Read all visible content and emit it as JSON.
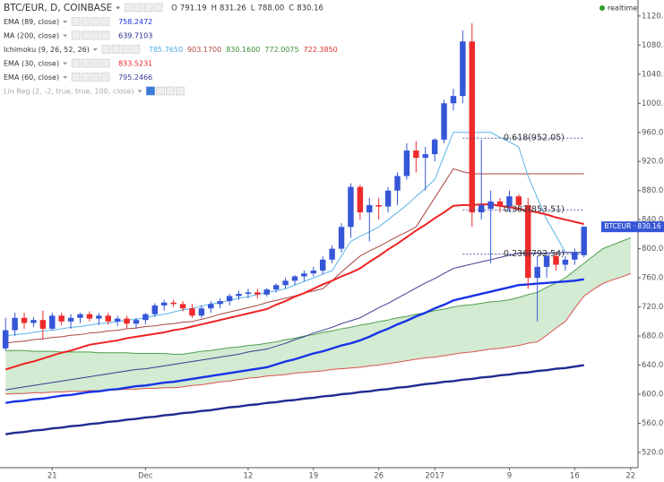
{
  "chart_data": {
    "type": "candlestick",
    "title": "BTC/EUR, D, COINBASE",
    "ohlc_readout": [
      {
        "label": "O",
        "value": "791.19"
      },
      {
        "label": "H",
        "value": "831.26"
      },
      {
        "label": "L",
        "value": "788.00"
      },
      {
        "label": "C",
        "value": "830.16"
      }
    ],
    "status": "realtime",
    "up_color": "#3656d8",
    "down_color": "#ee2a2a",
    "categories": [
      null,
      null,
      null,
      null,
      null,
      "21",
      null,
      null,
      null,
      null,
      null,
      null,
      null,
      null,
      null,
      "Dec",
      null,
      null,
      null,
      null,
      null,
      null,
      null,
      null,
      null,
      null,
      "12",
      null,
      null,
      null,
      null,
      null,
      null,
      "19",
      null,
      null,
      null,
      null,
      null,
      null,
      "26",
      null,
      null,
      null,
      null,
      null,
      "2017",
      null,
      null,
      null,
      null,
      null,
      null,
      null,
      "9",
      null,
      null,
      null,
      null,
      null,
      null,
      "16",
      null,
      null,
      null,
      null,
      null,
      "22"
    ],
    "open": [
      663,
      688,
      705,
      698,
      702,
      690,
      708,
      700,
      705,
      710,
      704,
      708,
      700,
      704,
      697,
      702,
      710,
      722,
      726,
      724,
      718,
      708,
      718,
      724,
      728,
      735,
      738,
      740,
      737,
      744,
      750,
      756,
      762,
      766,
      770,
      785,
      800,
      830,
      885,
      850,
      860,
      858,
      880,
      900,
      935,
      925,
      930,
      950,
      1000,
      1010,
      1085,
      850,
      855,
      865,
      858,
      872,
      860,
      760,
      775,
      790,
      778,
      785,
      791.19,
      null,
      null,
      null,
      null,
      null
    ],
    "high": [
      705,
      712,
      712,
      706,
      715,
      712,
      712,
      710,
      712,
      714,
      712,
      712,
      708,
      708,
      705,
      712,
      725,
      730,
      730,
      728,
      724,
      722,
      728,
      732,
      738,
      742,
      745,
      745,
      746,
      752,
      760,
      764,
      770,
      775,
      790,
      805,
      835,
      890,
      888,
      870,
      870,
      885,
      905,
      945,
      948,
      940,
      952,
      1005,
      1020,
      1100,
      1110,
      950,
      880,
      870,
      880,
      875,
      870,
      790,
      795,
      795,
      790,
      800,
      831.26,
      null,
      null,
      null,
      null,
      null
    ],
    "low": [
      660,
      680,
      690,
      692,
      675,
      688,
      695,
      690,
      698,
      700,
      695,
      696,
      694,
      690,
      690,
      696,
      706,
      715,
      720,
      714,
      705,
      705,
      712,
      718,
      722,
      730,
      732,
      732,
      734,
      740,
      745,
      750,
      755,
      762,
      765,
      780,
      795,
      815,
      840,
      810,
      840,
      850,
      860,
      895,
      905,
      880,
      920,
      945,
      990,
      1000,
      830,
      840,
      780,
      850,
      850,
      855,
      745,
      700,
      760,
      770,
      770,
      778,
      788,
      null,
      null,
      null,
      null,
      null
    ],
    "close": [
      688,
      705,
      698,
      702,
      690,
      708,
      700,
      705,
      710,
      704,
      708,
      700,
      704,
      697,
      702,
      710,
      722,
      726,
      724,
      718,
      708,
      718,
      724,
      728,
      735,
      738,
      740,
      737,
      744,
      750,
      756,
      762,
      766,
      770,
      785,
      800,
      830,
      885,
      850,
      860,
      858,
      880,
      900,
      935,
      925,
      930,
      950,
      1000,
      1010,
      1085,
      850,
      860,
      865,
      858,
      872,
      860,
      760,
      775,
      790,
      778,
      785,
      795,
      830.16,
      null,
      null,
      null,
      null,
      null
    ],
    "series": [
      {
        "name": "EMA (89, close)",
        "readout": "758.2472",
        "color": "#1733e6",
        "values": [
          588,
          590,
          591,
          593,
          594,
          596,
          598,
          599,
          601,
          603,
          604,
          606,
          607,
          609,
          611,
          612,
          614,
          616,
          617,
          619,
          621,
          623,
          625,
          627,
          629,
          631,
          633,
          635,
          637,
          641,
          645,
          648,
          652,
          656,
          659,
          663,
          667,
          670,
          674,
          679,
          685,
          690,
          696,
          701,
          707,
          712,
          718,
          723,
          729,
          732,
          735,
          738,
          741,
          744,
          747,
          750,
          751,
          752,
          753,
          754,
          755,
          756,
          758,
          null,
          null,
          null,
          null,
          null
        ]
      },
      {
        "name": "MA (200, close)",
        "readout": "639.7103",
        "color": "#1f2a8e",
        "values": [
          545,
          547,
          548,
          550,
          551,
          553,
          554,
          556,
          557,
          559,
          560,
          562,
          563,
          565,
          566,
          568,
          569,
          571,
          572,
          574,
          575,
          577,
          578,
          580,
          582,
          583,
          585,
          586,
          588,
          589,
          591,
          592,
          594,
          595,
          597,
          598,
          600,
          601,
          603,
          604,
          606,
          607,
          609,
          610,
          612,
          614,
          615,
          617,
          618,
          620,
          621,
          623,
          624,
          626,
          627,
          629,
          630,
          632,
          633,
          635,
          636,
          638,
          640,
          null,
          null,
          null,
          null,
          null
        ]
      },
      {
        "name": "Ichimoku (9, 26, 52, 26)",
        "readouts": [
          "785.7650",
          "903.1700",
          "830.1600",
          "772.0075",
          "722.3850"
        ],
        "readout_colors": [
          "#4aa8e0",
          "#b04a44",
          "#3b8f3b",
          "#3b8f3b",
          "#e0322e"
        ],
        "cloud_color": "#bfe3bf",
        "lines": [
          {
            "color": "#5ab4e8",
            "values": [
              680,
              682,
              683,
              685,
              687,
              688,
              690,
              692,
              693,
              695,
              697,
              698,
              700,
              702,
              703,
              705,
              708,
              710,
              713,
              716,
              718,
              721,
              724,
              726,
              729,
              732,
              734,
              737,
              740,
              742,
              745,
              750,
              755,
              760,
              765,
              770,
              790,
              810,
              817,
              823,
              830,
              840,
              850,
              860,
              872,
              883,
              895,
              928,
              960,
              960,
              960,
              960,
              960,
              953,
              947,
              940,
              900,
              870,
              840,
              818,
              795,
              795,
              795,
              null,
              null,
              null,
              null,
              null
            ]
          },
          {
            "color": "#a8453f",
            "values": [
              670,
              672,
              673,
              675,
              676,
              678,
              679,
              681,
              682,
              684,
              685,
              687,
              688,
              690,
              691,
              693,
              694,
              696,
              697,
              699,
              700,
              703,
              706,
              710,
              713,
              716,
              719,
              722,
              726,
              729,
              732,
              735,
              739,
              742,
              745,
              756,
              768,
              779,
              790,
              797,
              803,
              810,
              817,
              823,
              830,
              850,
              870,
              890,
              910,
              906,
              903,
              903,
              903,
              903,
              903,
              903,
              903,
              903,
              903,
              903,
              903,
              903,
              903,
              null,
              null,
              null,
              null,
              null
            ]
          },
          {
            "color": "#4f9e4f",
            "values": [
              660,
              660,
              660,
              659,
              659,
              659,
              658,
              658,
              658,
              658,
              657,
              657,
              657,
              657,
              656,
              656,
              656,
              656,
              655,
              655,
              657,
              659,
              660,
              662,
              664,
              665,
              667,
              668,
              670,
              672,
              675,
              677,
              680,
              682,
              685,
              687,
              690,
              692,
              695,
              697,
              700,
              702,
              705,
              707,
              710,
              712,
              715,
              717,
              720,
              722,
              723,
              725,
              727,
              728,
              730,
              733,
              737,
              740,
              747,
              753,
              760,
              770,
              780,
              790,
              800,
              805,
              810,
              815
            ]
          },
          {
            "color": "#d9534f",
            "values": [
              600,
              601,
              601,
              602,
              602,
              603,
              603,
              604,
              604,
              605,
              605,
              606,
              606,
              607,
              607,
              608,
              608,
              609,
              609,
              610,
              612,
              613,
              615,
              617,
              618,
              620,
              622,
              623,
              625,
              626,
              627,
              629,
              630,
              631,
              632,
              634,
              635,
              636,
              637,
              639,
              640,
              642,
              644,
              646,
              648,
              650,
              651,
              653,
              655,
              657,
              658,
              660,
              662,
              663,
              665,
              667,
              670,
              672,
              681,
              691,
              700,
              718,
              735,
              744,
              752,
              757,
              761,
              766
            ]
          }
        ]
      },
      {
        "name": "EMA (30, close)",
        "readout": "833.5231",
        "color": "#ee2222",
        "values": [
          634,
          638,
          642,
          645,
          649,
          653,
          657,
          660,
          664,
          668,
          670,
          672,
          674,
          677,
          679,
          681,
          683,
          685,
          688,
          690,
          693,
          696,
          699,
          702,
          705,
          708,
          711,
          714,
          717,
          723,
          728,
          734,
          739,
          745,
          751,
          756,
          762,
          767,
          773,
          782,
          790,
          799,
          807,
          816,
          825,
          833,
          842,
          850,
          859,
          860,
          860,
          861,
          861,
          859,
          857,
          855,
          852,
          850,
          847,
          843,
          840,
          837,
          834,
          null,
          null,
          null,
          null,
          null
        ]
      },
      {
        "name": "EMA (60, close)",
        "readout": "795.2466",
        "color": "#3a3d92",
        "values": [
          606,
          608,
          610,
          612,
          614,
          616,
          618,
          620,
          622,
          624,
          626,
          628,
          630,
          632,
          634,
          635,
          637,
          639,
          641,
          643,
          645,
          647,
          649,
          651,
          653,
          655,
          658,
          660,
          662,
          666,
          670,
          675,
          679,
          684,
          688,
          692,
          697,
          701,
          705,
          712,
          719,
          725,
          732,
          739,
          746,
          753,
          759,
          766,
          773,
          776,
          779,
          782,
          785,
          788,
          791,
          794,
          794,
          794,
          794,
          795,
          795,
          795,
          795,
          null,
          null,
          null,
          null,
          null
        ]
      },
      {
        "name": "Lin Reg (2, -2, true, true, 100, close)",
        "hidden": true
      }
    ],
    "fibonacci": [
      {
        "label": "0.618(952.05)",
        "value": 952.05
      },
      {
        "label": "0.382(853.51)",
        "value": 853.51
      },
      {
        "label": "0.236(792.54)",
        "value": 792.54
      }
    ],
    "price_badge": "BTCEUR · 830.16",
    "ylim": [
      499,
      1142
    ],
    "yticks": [
      {
        "value": 520,
        "label": "520.00"
      },
      {
        "value": 560,
        "label": "560.00"
      },
      {
        "value": 600,
        "label": "600.00"
      },
      {
        "value": 640,
        "label": "640.00"
      },
      {
        "value": 680,
        "label": "680.00"
      },
      {
        "value": 720,
        "label": "720.00"
      },
      {
        "value": 760,
        "label": "760.00"
      },
      {
        "value": 800,
        "label": "800.00"
      },
      {
        "value": 840,
        "label": "840.00"
      },
      {
        "value": 880,
        "label": "880.00"
      },
      {
        "value": 920,
        "label": "920.00"
      },
      {
        "value": 960,
        "label": "960.00"
      },
      {
        "value": 1000,
        "label": "1000.00"
      },
      {
        "value": 1040,
        "label": "1040.00"
      },
      {
        "value": 1080,
        "label": "1080.00"
      },
      {
        "value": 1120,
        "label": "1120.00"
      }
    ]
  }
}
